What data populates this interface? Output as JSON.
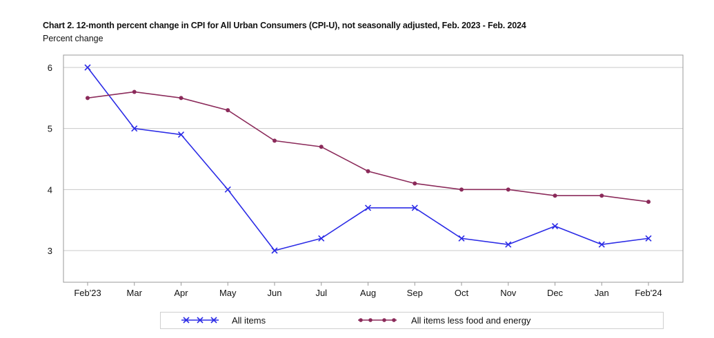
{
  "chart_data": {
    "type": "line",
    "title": "Chart 2. 12-month percent change in CPI for All Urban Consumers (CPI-U), not seasonally adjusted, Feb. 2023 - Feb. 2024",
    "subtitle": "Percent change",
    "categories": [
      "Feb'23",
      "Mar",
      "Apr",
      "May",
      "Jun",
      "Jul",
      "Aug",
      "Sep",
      "Oct",
      "Nov",
      "Dec",
      "Jan",
      "Feb'24"
    ],
    "ylim": [
      2.5,
      6.2
    ],
    "yticks": [
      3,
      4,
      5,
      6
    ],
    "grid": true,
    "legend_position": "bottom",
    "series": [
      {
        "name": "All items",
        "color": "#2b2be6",
        "marker": "x",
        "values": [
          6.0,
          5.0,
          4.9,
          4.0,
          3.0,
          3.2,
          3.7,
          3.7,
          3.2,
          3.1,
          3.4,
          3.1,
          3.2
        ]
      },
      {
        "name": "All items less food and energy",
        "color": "#8b2a5a",
        "marker": "circle",
        "values": [
          5.5,
          5.6,
          5.5,
          5.3,
          4.8,
          4.7,
          4.3,
          4.1,
          4.0,
          4.0,
          3.9,
          3.9,
          3.8
        ]
      }
    ]
  }
}
